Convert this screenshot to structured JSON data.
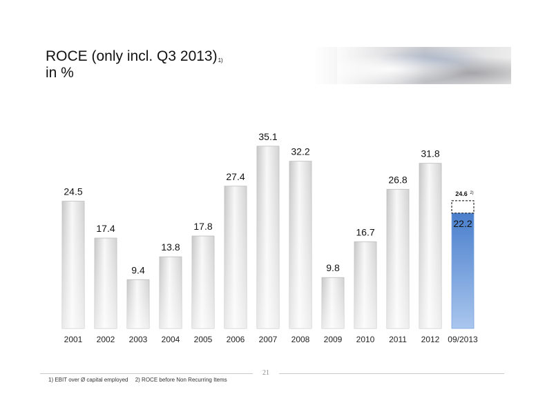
{
  "header": {
    "title_line1": "ROCE (only incl. Q3 2013)",
    "title_sup": "1)",
    "title_line2": "in %"
  },
  "chart_data": {
    "type": "bar",
    "categories": [
      "2001",
      "2002",
      "2003",
      "2004",
      "2005",
      "2006",
      "2007",
      "2008",
      "2009",
      "2010",
      "2011",
      "2012",
      "09/2013"
    ],
    "values": [
      24.5,
      17.4,
      9.4,
      13.8,
      17.8,
      27.4,
      35.1,
      32.2,
      9.8,
      16.7,
      26.8,
      31.8,
      22.2
    ],
    "highlight_index": 12,
    "annotation": {
      "category": "09/2013",
      "value": 24.6,
      "label": "24.6",
      "note": "2)",
      "style": "dashed-box"
    },
    "ylim": [
      0,
      38
    ],
    "grid": false,
    "legend": "none",
    "colors": {
      "bar": "#e4e4e4",
      "highlight": "#5b8fd6"
    }
  },
  "footer": {
    "page_number": "21",
    "note1": "1) EBIT over Ø capital employed",
    "note2": "2) ROCE before Non Recurring Items"
  }
}
